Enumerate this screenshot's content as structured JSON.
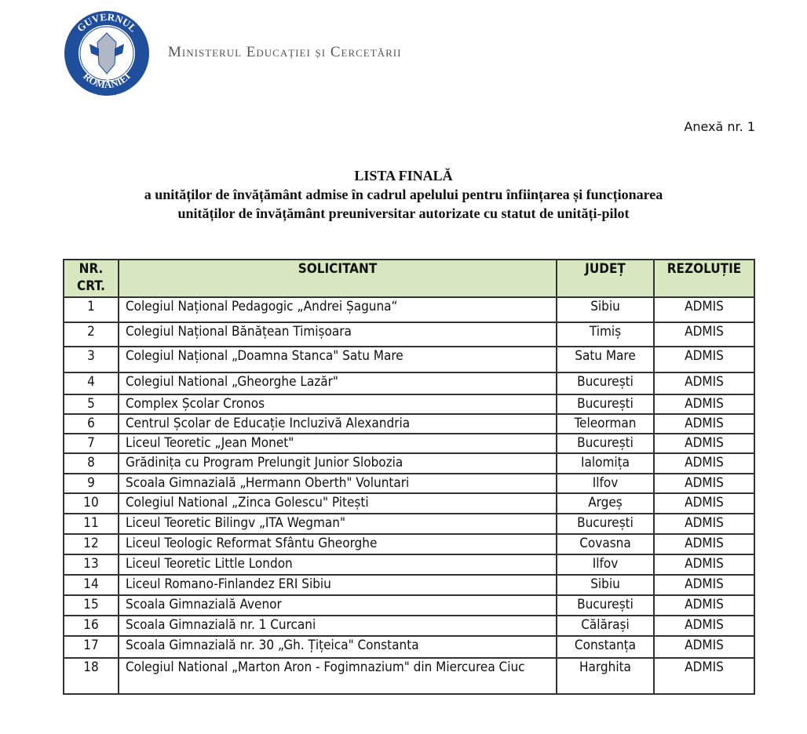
{
  "header": {
    "logo_text": "GUVERNUL ROMÂNIEI",
    "ministry": "Ministerul Educației și Cercetării",
    "annex": "Anexă nr. 1"
  },
  "title": {
    "line1": "LISTA FINALĂ",
    "line2": "a unităților de învățământ admise în cadrul apelului  pentru înființarea și funcționarea",
    "line3": "unităților de învățământ preuniversitar autorizate cu statut de unități-pilot"
  },
  "table": {
    "headers": [
      "NR. CRT.",
      "SOLICITANT",
      "JUDEȚ",
      "REZOLUȚIE"
    ],
    "header_color": "#d7e8c0",
    "rows": [
      [
        "1",
        "Colegiul Național Pedagogic „Andrei Șaguna“",
        "Sibiu",
        "ADMIS"
      ],
      [
        "2",
        "Colegiul Național Bănățean Timișoara",
        "Timiș",
        "ADMIS"
      ],
      [
        "3",
        "Colegiul Național „Doamna Stanca\" Satu Mare",
        "Satu Mare",
        "ADMIS"
      ],
      [
        "4",
        "Colegiul National „Gheorghe Lazăr\"",
        "București",
        "ADMIS"
      ],
      [
        "5",
        "Complex Școlar Cronos",
        "București",
        "ADMIS"
      ],
      [
        "6",
        "Centrul Școlar de Educație Incluzivă Alexandria",
        "Teleorman",
        "ADMIS"
      ],
      [
        "7",
        "Liceul Teoretic „Jean Monet\"",
        "București",
        "ADMIS"
      ],
      [
        "8",
        "Grădinița cu Program Prelungit Junior Slobozia",
        "Ialomița",
        "ADMIS"
      ],
      [
        "9",
        "Scoala Gimnazială „Hermann Oberth\" Voluntari",
        "Ilfov",
        "ADMIS"
      ],
      [
        "10",
        "Colegiul National „Zinca Golescu\" Pitești",
        "Argeș",
        "ADMIS"
      ],
      [
        "11",
        "Liceul Teoretic Bilingv „ITA Wegman\"",
        "București",
        "ADMIS"
      ],
      [
        "12",
        "Liceul Teologic Reformat Sfântu Gheorghe",
        "Covasna",
        "ADMIS"
      ],
      [
        "13",
        "Liceul Teoretic Little London",
        "Ilfov",
        "ADMIS"
      ],
      [
        "14",
        "Liceul Romano-Finlandez ERI Sibiu",
        "Sibiu",
        "ADMIS"
      ],
      [
        "15",
        "Scoala Gimnazială Avenor",
        "București",
        "ADMIS"
      ],
      [
        "16",
        "Scoala Gimnazială nr. 1 Curcani",
        "Călărași",
        "ADMIS"
      ],
      [
        "17",
        "Scoala Gimnazială nr. 30 „Gh. Țițeica\" Constanta",
        "Constanța",
        "ADMIS"
      ],
      [
        "18",
        "Colegiul National „Marton Aron - Fogimnazium\" din Miercurea Ciuc",
        "Harghita",
        "ADMIS"
      ]
    ]
  }
}
